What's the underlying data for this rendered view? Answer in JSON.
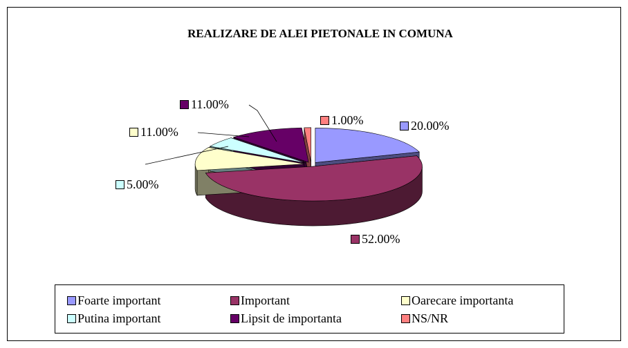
{
  "chart_data": {
    "type": "pie3d",
    "title": "REALIZARE DE ALEI PIETONALE IN COMUNA",
    "categories": [
      "Foarte important",
      "Important",
      "Oarecare importanta",
      "Putina important",
      "Lipsit de importanta",
      "NS/NR"
    ],
    "values": [
      20,
      52,
      11,
      5,
      11,
      1
    ],
    "value_labels": [
      "20.00%",
      "52.00%",
      "11.00%",
      "5.00%",
      "11.00%",
      "1.00%"
    ],
    "colors": [
      "#9999ff",
      "#993366",
      "#ffffcc",
      "#ccffff",
      "#660066",
      "#ff8080"
    ],
    "legend": "bottom"
  }
}
